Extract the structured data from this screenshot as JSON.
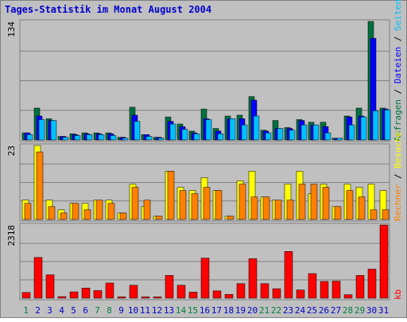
{
  "chart_data": {
    "title": "Tages-Statistik im Monat August 2004",
    "days": [
      "1",
      "2",
      "3",
      "4",
      "5",
      "6",
      "7",
      "8",
      "9",
      "10",
      "11",
      "12",
      "13",
      "14",
      "15",
      "16",
      "17",
      "18",
      "19",
      "20",
      "21",
      "22",
      "23",
      "24",
      "25",
      "26",
      "27",
      "28",
      "29",
      "30",
      "31"
    ],
    "weekend_days": [
      "1",
      "7",
      "8",
      "14",
      "15",
      "21",
      "22",
      "28",
      "29"
    ],
    "colors": {
      "title": "#0000cc",
      "background": "#c0c0c0",
      "frame": "#808080",
      "grid": "#808080",
      "weekday_label": "#0000cc",
      "weekend_label": "#008040",
      "anfragen": "#007040",
      "dateien": "#0000ff",
      "seiten": "#00c0ff",
      "besuche": "#ffff00",
      "rechner": "#ff8000",
      "kb": "#ff0000"
    },
    "panels": [
      {
        "type": "bar",
        "max_label": "134",
        "ymax": 134,
        "legend": [
          "Anfragen",
          "Dateien",
          "Seiten"
        ],
        "separator": "/",
        "series": [
          {
            "name": "Anfragen",
            "values": [
              8,
              36,
              24,
              4,
              7,
              8,
              8,
              8,
              3,
              37,
              6,
              3,
              26,
              18,
              10,
              35,
              13,
              27,
              28,
              49,
              11,
              22,
              14,
              23,
              20,
              20,
              2,
              27,
              36,
              134,
              36
            ]
          },
          {
            "name": "Dateien",
            "values": [
              8,
              27,
              22,
              4,
              6,
              7,
              7,
              7,
              3,
              28,
              6,
              3,
              21,
              15,
              8,
              24,
              10,
              24,
              24,
              45,
              10,
              13,
              13,
              22,
              17,
              15,
              2,
              26,
              27,
              115,
              35
            ]
          },
          {
            "name": "Seiten",
            "values": [
              6,
              23,
              22,
              3,
              5,
              6,
              6,
              5,
              2,
              21,
              4,
              2,
              18,
              12,
              7,
              23,
              7,
              24,
              17,
              27,
              8,
              13,
              11,
              17,
              17,
              8,
              2,
              17,
              26,
              33,
              34
            ]
          }
        ]
      },
      {
        "type": "bar",
        "max_label": "23",
        "ymax": 23,
        "legend": [
          "Rechner",
          "Besuche"
        ],
        "separator": "/",
        "series": [
          {
            "name": "Besuche",
            "values": [
              6,
              23,
              6,
              3,
              5,
              5,
              6,
              6,
              2,
              11,
              4,
              1,
              15,
              10,
              9,
              13,
              9,
              1,
              12,
              15,
              7,
              6,
              11,
              15,
              8,
              11,
              4,
              11,
              10,
              11,
              9
            ]
          },
          {
            "name": "Rechner",
            "values": [
              5,
              21,
              4,
              2,
              5,
              3,
              6,
              5,
              2,
              10,
              6,
              1,
              15,
              9,
              8,
              10,
              9,
              1,
              11,
              7,
              7,
              6,
              6,
              11,
              11,
              10,
              4,
              9,
              7,
              3,
              3
            ]
          }
        ]
      },
      {
        "type": "bar",
        "max_label": "2318",
        "ymax": 2318,
        "legend": [
          "kb"
        ],
        "separator": "",
        "series": [
          {
            "name": "kb",
            "values": [
              180,
              1290,
              740,
              50,
              200,
              320,
              240,
              480,
              40,
              410,
              40,
              40,
              720,
              410,
              190,
              1270,
              230,
              120,
              460,
              1250,
              460,
              300,
              1480,
              260,
              780,
              530,
              540,
              110,
              720,
              920,
              2318
            ]
          }
        ]
      }
    ]
  }
}
